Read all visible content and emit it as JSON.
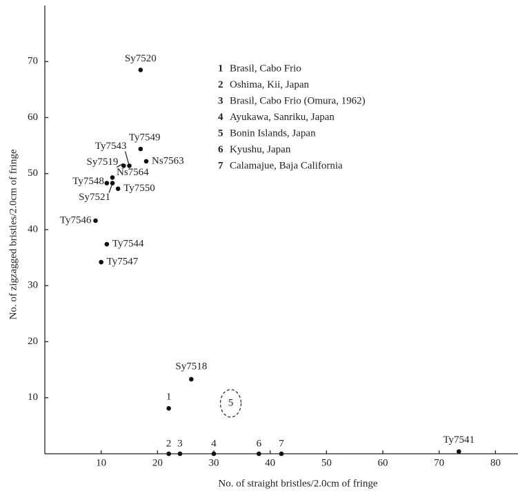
{
  "chart_data": {
    "type": "scatter",
    "x_label": "No. of straight bristles/2.0cm of fringe",
    "y_label": "No. of zigzagged bristles/2.0cm of fringe",
    "xlim": [
      0,
      84
    ],
    "ylim": [
      0,
      80
    ],
    "xticks": [
      10,
      20,
      30,
      40,
      50,
      60,
      70,
      80
    ],
    "yticks": [
      10,
      20,
      30,
      40,
      50,
      60,
      70
    ],
    "color": "#111111",
    "points": [
      {
        "label": "Sy7520",
        "x": 17,
        "y": 68.5
      },
      {
        "label": "Ty7549",
        "x": 17,
        "y": 54.4
      },
      {
        "label": "Ty7543",
        "x": 15,
        "y": 51.4
      },
      {
        "label": "Sy7519",
        "x": 14,
        "y": 51.4
      },
      {
        "label": "Ns7563",
        "x": 18,
        "y": 52.2
      },
      {
        "label": "Ns7564",
        "x": 12,
        "y": 49.3
      },
      {
        "label": "Ty7548",
        "x": 11,
        "y": 48.3
      },
      {
        "label": "Sy7521",
        "x": 12,
        "y": 48.3
      },
      {
        "label": "Ty7550",
        "x": 13,
        "y": 47.3
      },
      {
        "label": "Ty7546",
        "x": 9,
        "y": 41.6
      },
      {
        "label": "Ty7544",
        "x": 11,
        "y": 37.4
      },
      {
        "label": "Ty7547",
        "x": 10,
        "y": 34.2
      },
      {
        "label": "Sy7518",
        "x": 26,
        "y": 13.3
      },
      {
        "label": "1",
        "x": 22,
        "y": 8.1
      },
      {
        "label": "2",
        "x": 22,
        "y": 0
      },
      {
        "label": "3",
        "x": 24,
        "y": 0
      },
      {
        "label": "4",
        "x": 30,
        "y": 0
      },
      {
        "label": "6",
        "x": 38,
        "y": 0
      },
      {
        "label": "7",
        "x": 42,
        "y": 0
      },
      {
        "label": "Ty7541",
        "x": 73.5,
        "y": 0.4
      }
    ],
    "region": {
      "label": "5",
      "x": 33,
      "y": 9
    },
    "notes": [
      {
        "number": "1",
        "text": "Brasil, Cabo Frio"
      },
      {
        "number": "2",
        "text": "Oshima, Kii, Japan"
      },
      {
        "number": "3",
        "text": "Brasil, Cabo Frio (Omura, 1962)"
      },
      {
        "number": "4",
        "text": "Ayukawa, Sanriku, Japan"
      },
      {
        "number": "5",
        "text": "Bonin Islands, Japan"
      },
      {
        "number": "6",
        "text": "Kyushu, Japan"
      },
      {
        "number": "7",
        "text": "Calamajue, Baja California"
      }
    ]
  }
}
